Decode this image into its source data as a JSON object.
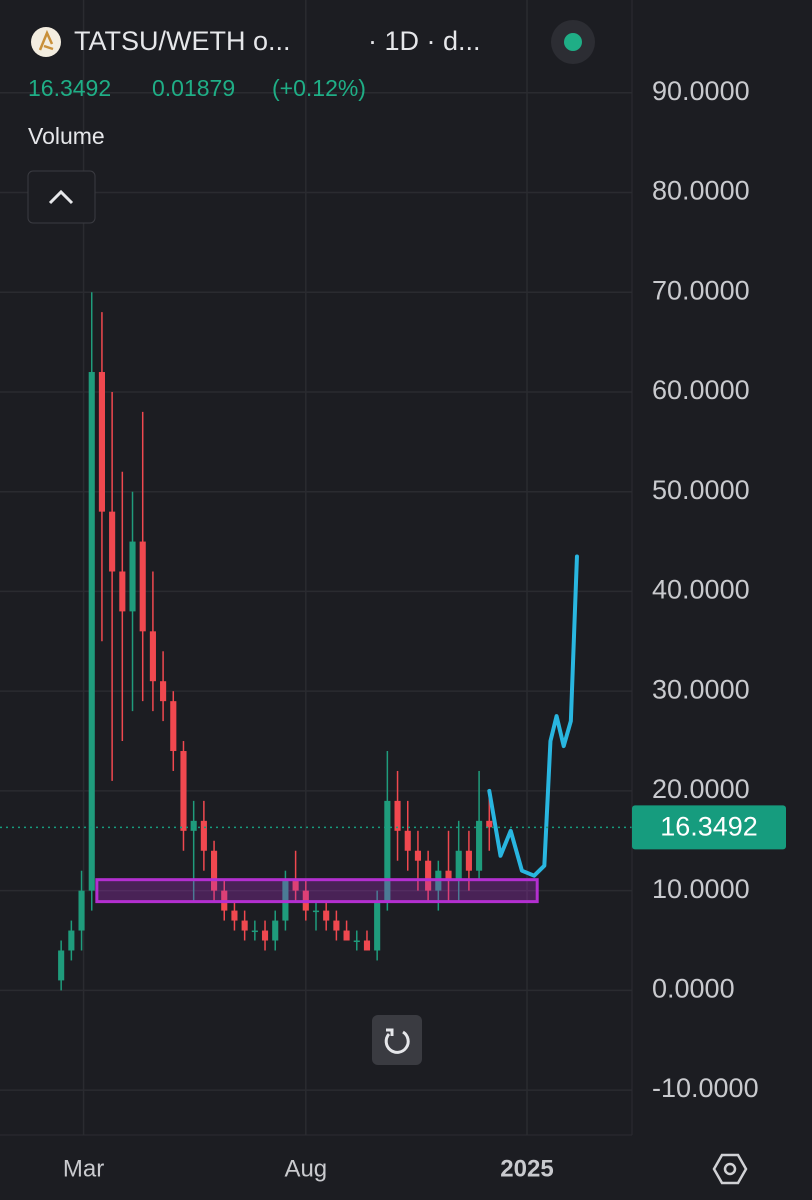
{
  "header": {
    "symbol": "TATSU/WETH o...",
    "interval": "· 1D · d...",
    "price": "16.3492",
    "change": "0.01879",
    "change_pct": "(+0.12%)",
    "volume_label": "Volume"
  },
  "chart_data": {
    "type": "candlestick",
    "open": [
      1,
      4,
      6,
      10,
      62,
      48,
      42,
      38,
      45,
      36,
      31,
      29,
      24,
      16,
      17,
      14,
      10,
      8,
      7,
      6,
      6,
      5,
      7,
      11,
      10,
      8,
      8,
      7,
      6,
      5,
      5,
      4,
      9,
      19,
      16,
      14,
      13,
      10,
      12,
      11,
      14,
      12,
      17
    ],
    "high": [
      5,
      7,
      12,
      70,
      68,
      60,
      52,
      50,
      58,
      42,
      34,
      30,
      25,
      19,
      19,
      15,
      11,
      9,
      8,
      7,
      7,
      8,
      12,
      14,
      11,
      9,
      9,
      8,
      7,
      6,
      6,
      10,
      24,
      22,
      19,
      16,
      14,
      13,
      16,
      17,
      16,
      22,
      20
    ],
    "low": [
      0,
      3,
      4,
      8,
      35,
      21,
      25,
      28,
      29,
      28,
      27,
      22,
      14,
      9,
      12,
      9,
      7,
      6,
      5,
      5,
      4,
      4,
      6,
      9,
      7,
      6,
      6,
      5,
      5,
      4,
      4,
      3,
      8,
      13,
      12,
      10,
      9,
      8,
      9,
      9,
      10,
      11,
      14
    ],
    "close": [
      4,
      6,
      10,
      62,
      48,
      42,
      38,
      45,
      36,
      31,
      29,
      24,
      16,
      17,
      14,
      10,
      8,
      7,
      6,
      6,
      5,
      7,
      11,
      10,
      8,
      8,
      7,
      6,
      5,
      5,
      4,
      9,
      19,
      16,
      14,
      13,
      10,
      12,
      11,
      14,
      12,
      17,
      16.35
    ],
    "up_color": "#1f9c7c",
    "down_color": "#f0484f",
    "xlim": [
      -6,
      56
    ],
    "ylim": [
      -14.5,
      99.3
    ],
    "xticks": [
      {
        "value": 2.2,
        "label": "Mar"
      },
      {
        "value": 24,
        "label": "Aug"
      },
      {
        "value": 45.7,
        "label": "2025"
      }
    ],
    "yticks": [
      {
        "value": -10,
        "label": "-10.0000"
      },
      {
        "value": 0,
        "label": "0.0000"
      },
      {
        "value": 10,
        "label": "10.0000"
      },
      {
        "value": 20,
        "label": "20.0000"
      },
      {
        "value": 30,
        "label": "30.0000"
      },
      {
        "value": 40,
        "label": "40.0000"
      },
      {
        "value": 50,
        "label": "50.0000"
      },
      {
        "value": 60,
        "label": "60.0000"
      },
      {
        "value": 70,
        "label": "70.0000"
      },
      {
        "value": 80,
        "label": "80.0000"
      },
      {
        "value": 90,
        "label": "90.0000"
      }
    ],
    "grid": true,
    "last_price": {
      "value": 16.3492,
      "label": "16.3492",
      "color": "#169c7e"
    },
    "zone": {
      "x": [
        3.5,
        46.7
      ],
      "y": [
        8.9,
        11.1
      ],
      "color": "#b32fd0"
    },
    "drawing": {
      "x": [
        42,
        43.1,
        44.1,
        45.2,
        46.4,
        47.4,
        48,
        48.6,
        49.3,
        50,
        50.6
      ],
      "y": [
        20,
        13.5,
        16,
        12,
        11.5,
        12.5,
        25,
        27.5,
        24.5,
        27,
        43.5
      ],
      "color": "#29b6e0"
    }
  }
}
